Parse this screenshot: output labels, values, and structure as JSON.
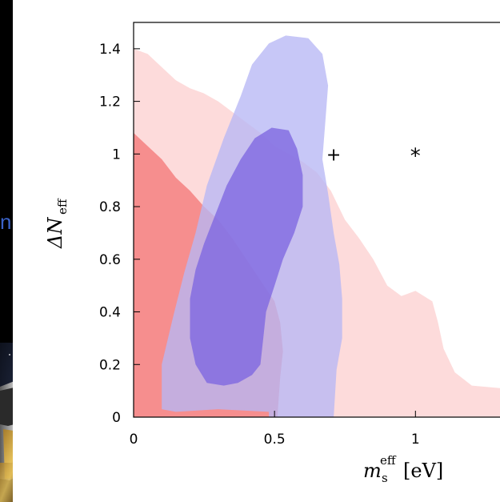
{
  "slide": {
    "fragment_text": "n"
  },
  "chart_data": {
    "type": "contour",
    "xlim": [
      0,
      1.3
    ],
    "ylim": [
      0,
      1.5
    ],
    "x_ticks": [
      "0",
      "0.5",
      "1"
    ],
    "x_tick_values": [
      0,
      0.5,
      1
    ],
    "y_ticks": [
      "0",
      "0.2",
      "0.4",
      "0.6",
      "0.8",
      "1",
      "1.2",
      "1.4"
    ],
    "y_tick_values": [
      0,
      0.2,
      0.4,
      0.6,
      0.8,
      1.0,
      1.2,
      1.4
    ],
    "xlabel": {
      "main": "m",
      "sub": "s",
      "sup": "eff",
      "unit": "[eV]"
    },
    "ylabel": {
      "main": "ΔN",
      "sub": "eff"
    },
    "regions": [
      {
        "id": "red-outer",
        "color": "#fdd1d1",
        "points": [
          [
            0,
            1.4
          ],
          [
            0.05,
            1.38
          ],
          [
            0.1,
            1.33
          ],
          [
            0.15,
            1.28
          ],
          [
            0.2,
            1.25
          ],
          [
            0.25,
            1.23
          ],
          [
            0.3,
            1.2
          ],
          [
            0.35,
            1.16
          ],
          [
            0.4,
            1.12
          ],
          [
            0.45,
            1.08
          ],
          [
            0.5,
            1.03
          ],
          [
            0.55,
            1.0
          ],
          [
            0.6,
            0.97
          ],
          [
            0.65,
            0.93
          ],
          [
            0.7,
            0.86
          ],
          [
            0.75,
            0.75
          ],
          [
            0.8,
            0.68
          ],
          [
            0.85,
            0.6
          ],
          [
            0.9,
            0.5
          ],
          [
            0.95,
            0.46
          ],
          [
            1.0,
            0.48
          ],
          [
            1.06,
            0.44
          ],
          [
            1.08,
            0.36
          ],
          [
            1.1,
            0.26
          ],
          [
            1.14,
            0.17
          ],
          [
            1.2,
            0.12
          ],
          [
            1.3,
            0.11
          ],
          [
            1.3,
            0
          ],
          [
            0,
            0
          ]
        ]
      },
      {
        "id": "red-inner",
        "color": "#f47878",
        "points": [
          [
            0,
            1.08
          ],
          [
            0.05,
            1.03
          ],
          [
            0.1,
            0.98
          ],
          [
            0.15,
            0.91
          ],
          [
            0.2,
            0.86
          ],
          [
            0.25,
            0.8
          ],
          [
            0.3,
            0.75
          ],
          [
            0.35,
            0.68
          ],
          [
            0.4,
            0.6
          ],
          [
            0.45,
            0.52
          ],
          [
            0.5,
            0.44
          ],
          [
            0.52,
            0.36
          ],
          [
            0.53,
            0.25
          ],
          [
            0.52,
            0.15
          ],
          [
            0.51,
            0
          ],
          [
            0,
            0
          ]
        ]
      },
      {
        "id": "blue-outer",
        "color": "#b7b7f5",
        "points": [
          [
            0.1,
            0.03
          ],
          [
            0.1,
            0.2
          ],
          [
            0.14,
            0.38
          ],
          [
            0.18,
            0.55
          ],
          [
            0.22,
            0.7
          ],
          [
            0.26,
            0.88
          ],
          [
            0.32,
            1.06
          ],
          [
            0.38,
            1.22
          ],
          [
            0.42,
            1.34
          ],
          [
            0.48,
            1.42
          ],
          [
            0.54,
            1.45
          ],
          [
            0.62,
            1.44
          ],
          [
            0.67,
            1.38
          ],
          [
            0.69,
            1.26
          ],
          [
            0.68,
            1.12
          ],
          [
            0.67,
            0.98
          ],
          [
            0.69,
            0.85
          ],
          [
            0.71,
            0.7
          ],
          [
            0.73,
            0.58
          ],
          [
            0.74,
            0.45
          ],
          [
            0.74,
            0.3
          ],
          [
            0.72,
            0.18
          ],
          [
            0.71,
            0
          ],
          [
            0.48,
            0
          ],
          [
            0.48,
            0.02
          ],
          [
            0.3,
            0.03
          ],
          [
            0.15,
            0.02
          ]
        ]
      },
      {
        "id": "blue-inner",
        "color": "#7e66e0",
        "points": [
          [
            0.2,
            0.36
          ],
          [
            0.2,
            0.45
          ],
          [
            0.22,
            0.56
          ],
          [
            0.25,
            0.66
          ],
          [
            0.29,
            0.77
          ],
          [
            0.33,
            0.88
          ],
          [
            0.38,
            0.98
          ],
          [
            0.43,
            1.06
          ],
          [
            0.49,
            1.1
          ],
          [
            0.55,
            1.09
          ],
          [
            0.58,
            1.02
          ],
          [
            0.6,
            0.92
          ],
          [
            0.6,
            0.8
          ],
          [
            0.57,
            0.7
          ],
          [
            0.53,
            0.6
          ],
          [
            0.5,
            0.5
          ],
          [
            0.47,
            0.4
          ],
          [
            0.46,
            0.3
          ],
          [
            0.45,
            0.2
          ],
          [
            0.42,
            0.16
          ],
          [
            0.37,
            0.13
          ],
          [
            0.32,
            0.12
          ],
          [
            0.26,
            0.13
          ],
          [
            0.22,
            0.2
          ],
          [
            0.2,
            0.3
          ]
        ]
      }
    ],
    "markers": [
      {
        "x": 0.71,
        "y": 1.0,
        "symbol": "+"
      },
      {
        "x": 1.0,
        "y": 1.0,
        "symbol": "*"
      }
    ]
  }
}
